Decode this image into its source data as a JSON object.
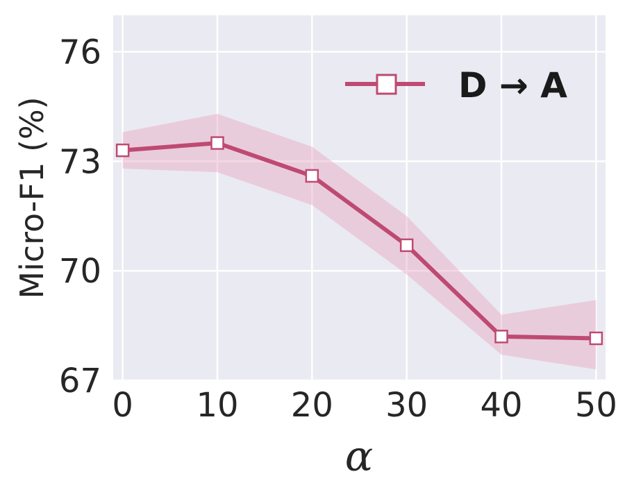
{
  "chart_data": {
    "type": "line",
    "xlabel": "α",
    "ylabel": "Micro-F1 (%)",
    "x": [
      0,
      10,
      20,
      30,
      40,
      50
    ],
    "xticks": [
      "0",
      "10",
      "20",
      "30",
      "40",
      "50"
    ],
    "yticks": [
      "67",
      "70",
      "73",
      "76"
    ],
    "xlim": [
      -1,
      51
    ],
    "ylim": [
      67,
      77
    ],
    "grid": true,
    "legend_position": "top-right",
    "series": [
      {
        "name": "D → A",
        "color": "#be4a72",
        "band_color": "#e8a8c0",
        "marker": "square",
        "values": [
          73.3,
          73.5,
          72.6,
          70.7,
          68.2,
          68.15
        ],
        "lower": [
          72.8,
          72.7,
          71.8,
          69.9,
          67.7,
          67.3
        ],
        "upper": [
          73.8,
          74.3,
          73.4,
          71.5,
          68.8,
          69.2
        ]
      }
    ]
  }
}
